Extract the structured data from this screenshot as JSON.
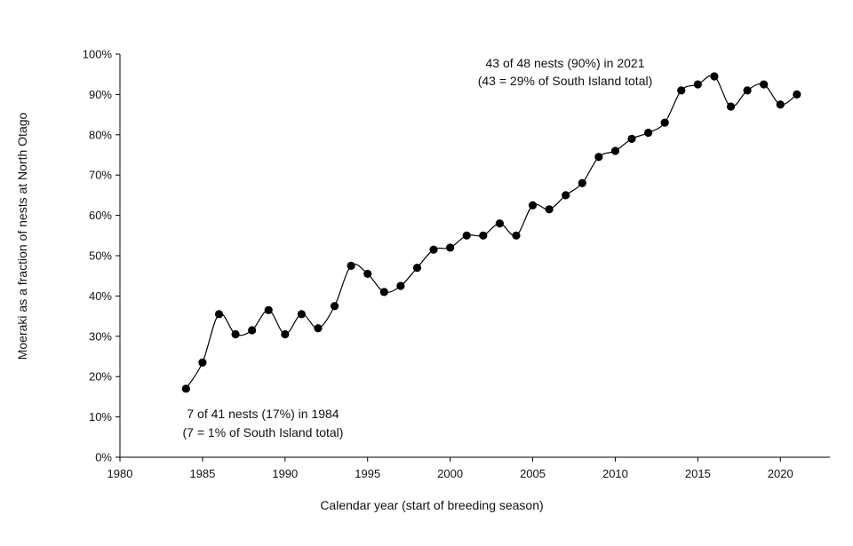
{
  "chart_data": {
    "type": "line",
    "title": "",
    "xlabel": "Calendar year (start of breeding season)",
    "ylabel": "Moeraki as a fraction of nests at North Otago",
    "xlim": [
      1980,
      2023
    ],
    "ylim": [
      0,
      100
    ],
    "x_ticks": [
      1980,
      1985,
      1990,
      1995,
      2000,
      2005,
      2010,
      2015,
      2020
    ],
    "y_ticks": [
      0,
      10,
      20,
      30,
      40,
      50,
      60,
      70,
      80,
      90,
      100
    ],
    "y_tick_labels": [
      "0%",
      "10%",
      "20%",
      "30%",
      "40%",
      "50%",
      "60%",
      "70%",
      "80%",
      "90%",
      "100%"
    ],
    "grid": false,
    "legend": "none",
    "marker_color": "#000000",
    "line_color": "#000000",
    "series": [
      {
        "x": [
          1984,
          1985,
          1986,
          1987,
          1988,
          1989,
          1990,
          1991,
          1992,
          1993,
          1994,
          1995,
          1996,
          1997,
          1998,
          1999,
          2000,
          2001,
          2002,
          2003,
          2004,
          2005,
          2006,
          2007,
          2008,
          2009,
          2010,
          2011,
          2012,
          2013,
          2014,
          2015,
          2016,
          2017,
          2018,
          2019,
          2020,
          2021
        ],
        "y": [
          17,
          23.5,
          35.5,
          30.5,
          31.5,
          36.5,
          30.5,
          35.5,
          32,
          37.5,
          47.5,
          45.5,
          41,
          42.5,
          47,
          51.5,
          52,
          55,
          55,
          58,
          55,
          62.5,
          61.5,
          65,
          68,
          74.5,
          76,
          79,
          80.5,
          83,
          91,
          92.5,
          94.5,
          87,
          91,
          92.5,
          87.5,
          90
        ]
      }
    ],
    "annotations": [
      {
        "line1": "43 of 48 nests (90%) in 2021",
        "line2": "(43 = 29% of South Island total)"
      },
      {
        "line1": "7 of 41 nests (17%) in 1984",
        "line2": "(7 = 1% of South Island total)"
      }
    ]
  }
}
